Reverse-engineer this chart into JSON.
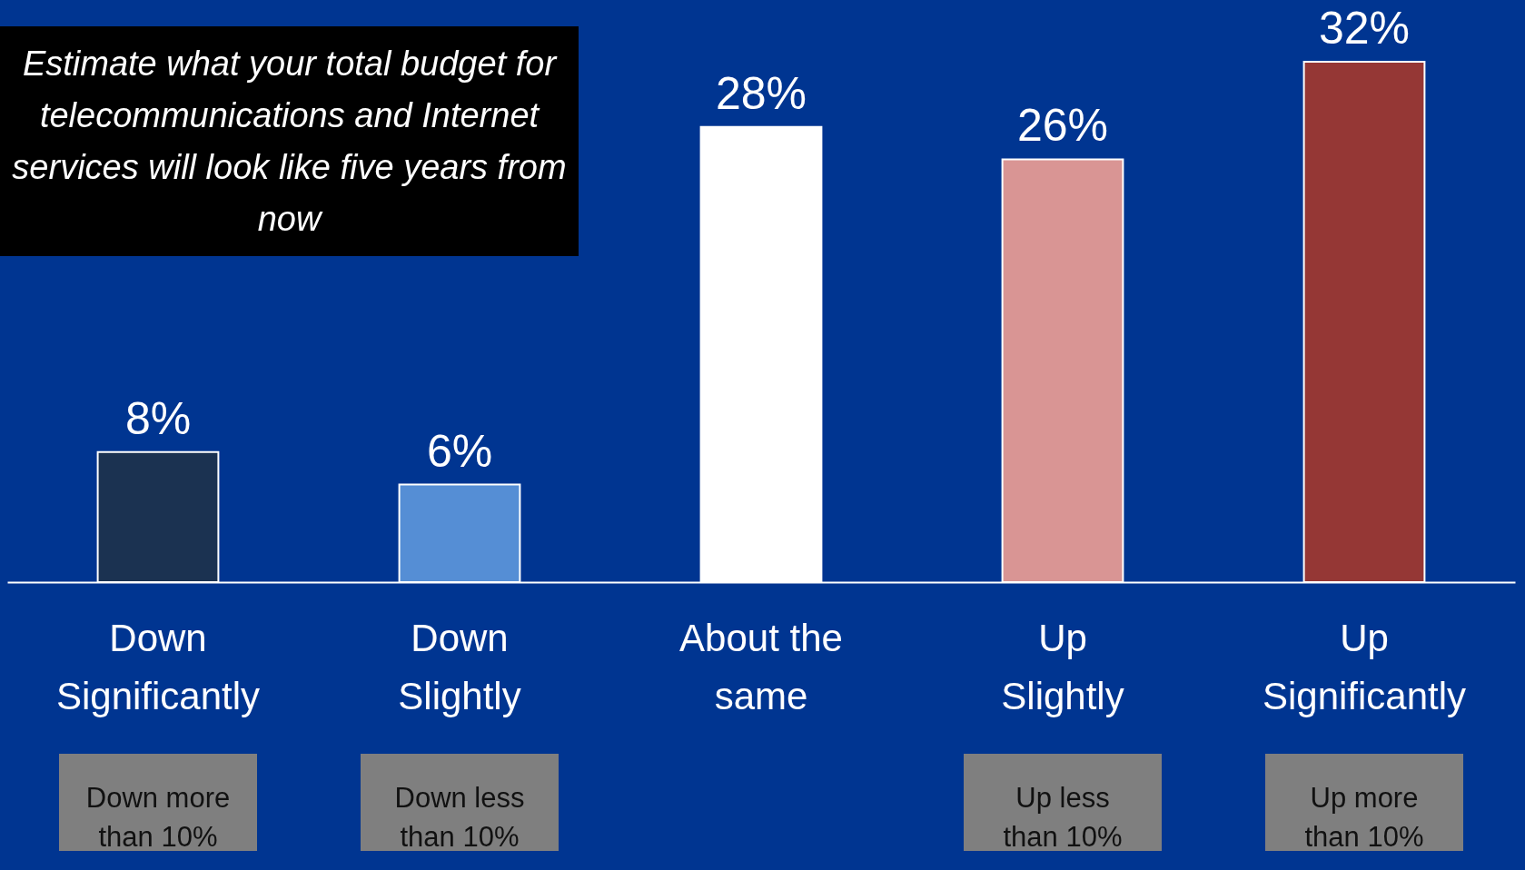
{
  "chart_data": {
    "type": "bar",
    "title": "Estimate what your total budget for telecommunications and Internet services will look like five years from now",
    "categories": [
      "Down Significantly",
      "Down Slightly",
      "About the same",
      "Up Slightly",
      "Up Significantly"
    ],
    "values": [
      8,
      6,
      28,
      26,
      32
    ],
    "colors": [
      "#1b3251",
      "#558ed5",
      "#ffffff",
      "#d99594",
      "#953735"
    ],
    "value_labels": [
      "8%",
      "6%",
      "28%",
      "26%",
      "32%"
    ],
    "annotations": [
      "Down more than 10%",
      "Down less than 10%",
      "Up less than 10%",
      "Up more than 10%"
    ]
  }
}
